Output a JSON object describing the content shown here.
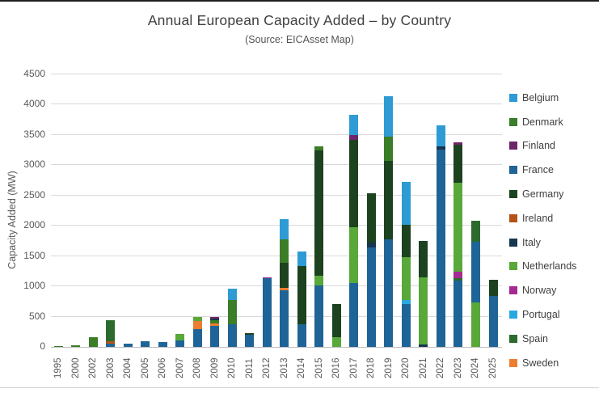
{
  "title": "Annual European Capacity Added – by Country",
  "subtitle": "(Source: EICAsset Map)",
  "chart_data": {
    "type": "bar",
    "stacked": true,
    "title": "Annual European Capacity Added – by Country",
    "subtitle": "(Source: EICAsset Map)",
    "xlabel": "",
    "ylabel": "Capacity Added (MW)",
    "ylim": [
      0,
      4500
    ],
    "yticks": [
      0,
      500,
      1000,
      1500,
      2000,
      2500,
      3000,
      3500,
      4000,
      4500
    ],
    "grid": true,
    "legend_position": "right",
    "categories": [
      "1995",
      "2000",
      "2002",
      "2003",
      "2004",
      "2005",
      "2006",
      "2007",
      "2008",
      "2009",
      "2010",
      "2011",
      "2012",
      "2013",
      "2014",
      "2015",
      "2016",
      "2017",
      "2018",
      "2019",
      "2020",
      "2021",
      "2022",
      "2023",
      "2024",
      "2025"
    ],
    "legend": [
      "Belgium",
      "Denmark",
      "Finland",
      "France",
      "Germany",
      "Ireland",
      "Italy",
      "Netherlands",
      "Norway",
      "Portugal",
      "Spain",
      "Sweden"
    ],
    "colors": {
      "Belgium": "#2E9BD5",
      "Denmark": "#3C7D28",
      "Finland": "#6E2668",
      "France": "#1F6496",
      "Germany": "#1C4220",
      "Ireland": "#B45318",
      "Italy": "#17364F",
      "Netherlands": "#58A83A",
      "Norway": "#A32A93",
      "Portugal": "#29A8E0",
      "Spain": "#2D6A2D",
      "Sweden": "#ED7D31"
    },
    "bars": [
      {
        "year": "1995",
        "segments": [
          {
            "country": "Denmark",
            "value": 10
          }
        ]
      },
      {
        "year": "2000",
        "segments": [
          {
            "country": "Denmark",
            "value": 30
          }
        ]
      },
      {
        "year": "2002",
        "segments": [
          {
            "country": "Denmark",
            "value": 155
          }
        ]
      },
      {
        "year": "2003",
        "segments": [
          {
            "country": "France",
            "value": 60
          },
          {
            "country": "Ireland",
            "value": 40
          },
          {
            "country": "Spain",
            "value": 345
          }
        ]
      },
      {
        "year": "2004",
        "segments": [
          {
            "country": "France",
            "value": 55
          }
        ]
      },
      {
        "year": "2005",
        "segments": [
          {
            "country": "France",
            "value": 95
          }
        ]
      },
      {
        "year": "2006",
        "segments": [
          {
            "country": "France",
            "value": 80
          }
        ]
      },
      {
        "year": "2007",
        "segments": [
          {
            "country": "France",
            "value": 105
          },
          {
            "country": "Netherlands",
            "value": 110
          }
        ]
      },
      {
        "year": "2008",
        "segments": [
          {
            "country": "France",
            "value": 290
          },
          {
            "country": "Sweden",
            "value": 135
          },
          {
            "country": "Netherlands",
            "value": 75
          }
        ]
      },
      {
        "year": "2009",
        "segments": [
          {
            "country": "France",
            "value": 345
          },
          {
            "country": "Sweden",
            "value": 40
          },
          {
            "country": "Denmark",
            "value": 50
          },
          {
            "country": "Italy",
            "value": 35
          },
          {
            "country": "Finland",
            "value": 30
          }
        ]
      },
      {
        "year": "2010",
        "segments": [
          {
            "country": "France",
            "value": 380
          },
          {
            "country": "Denmark",
            "value": 400
          },
          {
            "country": "Belgium",
            "value": 185
          }
        ]
      },
      {
        "year": "2011",
        "segments": [
          {
            "country": "France",
            "value": 200
          },
          {
            "country": "Germany",
            "value": 30
          }
        ]
      },
      {
        "year": "2012",
        "segments": [
          {
            "country": "France",
            "value": 1130
          },
          {
            "country": "Norway",
            "value": 20
          }
        ]
      },
      {
        "year": "2013",
        "segments": [
          {
            "country": "France",
            "value": 930
          },
          {
            "country": "Sweden",
            "value": 50
          },
          {
            "country": "Germany",
            "value": 415
          },
          {
            "country": "Denmark",
            "value": 380
          },
          {
            "country": "Belgium",
            "value": 340
          }
        ]
      },
      {
        "year": "2014",
        "segments": [
          {
            "country": "France",
            "value": 380
          },
          {
            "country": "Germany",
            "value": 955
          },
          {
            "country": "Belgium",
            "value": 245
          }
        ]
      },
      {
        "year": "2015",
        "segments": [
          {
            "country": "France",
            "value": 1020
          },
          {
            "country": "Netherlands",
            "value": 155
          },
          {
            "country": "Germany",
            "value": 2070
          },
          {
            "country": "Denmark",
            "value": 65
          }
        ]
      },
      {
        "year": "2016",
        "segments": [
          {
            "country": "Netherlands",
            "value": 155
          },
          {
            "country": "Germany",
            "value": 555
          }
        ]
      },
      {
        "year": "2017",
        "segments": [
          {
            "country": "France",
            "value": 1050
          },
          {
            "country": "Netherlands",
            "value": 925
          },
          {
            "country": "Germany",
            "value": 1445
          },
          {
            "country": "Finland",
            "value": 75
          },
          {
            "country": "Belgium",
            "value": 340
          }
        ]
      },
      {
        "year": "2018",
        "segments": [
          {
            "country": "France",
            "value": 1645
          },
          {
            "country": "Italy",
            "value": 75
          },
          {
            "country": "Germany",
            "value": 815
          }
        ]
      },
      {
        "year": "2019",
        "segments": [
          {
            "country": "France",
            "value": 1780
          },
          {
            "country": "Germany",
            "value": 1290
          },
          {
            "country": "Denmark",
            "value": 400
          },
          {
            "country": "Belgium",
            "value": 665
          }
        ]
      },
      {
        "year": "2020",
        "segments": [
          {
            "country": "France",
            "value": 710
          },
          {
            "country": "Portugal",
            "value": 65
          },
          {
            "country": "Netherlands",
            "value": 710
          },
          {
            "country": "Germany",
            "value": 535
          },
          {
            "country": "Belgium",
            "value": 710
          }
        ]
      },
      {
        "year": "2021",
        "segments": [
          {
            "country": "Italy",
            "value": 45
          },
          {
            "country": "Netherlands",
            "value": 1100
          },
          {
            "country": "Germany",
            "value": 610
          }
        ]
      },
      {
        "year": "2022",
        "segments": [
          {
            "country": "France",
            "value": 3255
          },
          {
            "country": "Italy",
            "value": 55
          },
          {
            "country": "Belgium",
            "value": 355
          }
        ]
      },
      {
        "year": "2023",
        "segments": [
          {
            "country": "France",
            "value": 1090
          },
          {
            "country": "Spain",
            "value": 45
          },
          {
            "country": "Norway",
            "value": 110
          },
          {
            "country": "Netherlands",
            "value": 1465
          },
          {
            "country": "Germany",
            "value": 625
          },
          {
            "country": "Finland",
            "value": 45
          }
        ]
      },
      {
        "year": "2024",
        "segments": [
          {
            "country": "Netherlands",
            "value": 735
          },
          {
            "country": "France",
            "value": 1000
          },
          {
            "country": "Spain",
            "value": 355
          }
        ]
      },
      {
        "year": "2025",
        "segments": [
          {
            "country": "France",
            "value": 845
          },
          {
            "country": "Germany",
            "value": 265
          }
        ]
      }
    ]
  }
}
